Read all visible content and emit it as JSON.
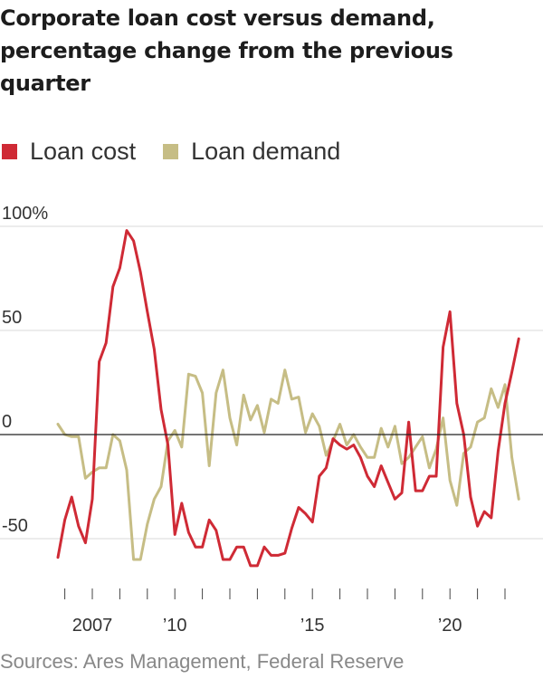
{
  "title": "Corporate loan cost versus demand, percentage change from the previous quarter",
  "source": "Sources: Ares Management, Federal Reserve",
  "colors": {
    "loan_cost": "#cf2a35",
    "loan_demand": "#c6bd85",
    "grid": "#d8d8d8",
    "zero": "#222222"
  },
  "chart_data": {
    "type": "line",
    "title": "Corporate loan cost versus demand, percentage change from the previous quarter",
    "xlabel": "",
    "ylabel": "",
    "x_ticks": [
      {
        "x": 2007,
        "label": "2007"
      },
      {
        "x": 2010,
        "label": "’10"
      },
      {
        "x": 2015,
        "label": "’15"
      },
      {
        "x": 2020,
        "label": "’20"
      }
    ],
    "y_ticks": [
      {
        "y": 100,
        "label": "100%"
      },
      {
        "y": 50,
        "label": "50"
      },
      {
        "y": 0,
        "label": "0"
      },
      {
        "y": -50,
        "label": "-50"
      }
    ],
    "xlim": [
      2005.3,
      2022.9
    ],
    "ylim": [
      -75,
      105
    ],
    "grid": true,
    "legend_position": "top-left",
    "series": [
      {
        "name": "Loan cost",
        "color": "#cf2a35",
        "points": [
          [
            2005.75,
            -59
          ],
          [
            2006.0,
            -41
          ],
          [
            2006.25,
            -30
          ],
          [
            2006.5,
            -44
          ],
          [
            2006.75,
            -52
          ],
          [
            2007.0,
            -31
          ],
          [
            2007.25,
            35
          ],
          [
            2007.5,
            44
          ],
          [
            2007.75,
            71
          ],
          [
            2008.0,
            80
          ],
          [
            2008.25,
            98
          ],
          [
            2008.5,
            93
          ],
          [
            2008.75,
            78
          ],
          [
            2009.0,
            59
          ],
          [
            2009.25,
            41
          ],
          [
            2009.5,
            12
          ],
          [
            2009.75,
            -5
          ],
          [
            2010.0,
            -48
          ],
          [
            2010.25,
            -33
          ],
          [
            2010.5,
            -47
          ],
          [
            2010.75,
            -54
          ],
          [
            2011.0,
            -54
          ],
          [
            2011.25,
            -41
          ],
          [
            2011.5,
            -46
          ],
          [
            2011.75,
            -60
          ],
          [
            2012.0,
            -60
          ],
          [
            2012.25,
            -54
          ],
          [
            2012.5,
            -54
          ],
          [
            2012.75,
            -63
          ],
          [
            2013.0,
            -63
          ],
          [
            2013.25,
            -54
          ],
          [
            2013.5,
            -58
          ],
          [
            2013.75,
            -58
          ],
          [
            2014.0,
            -57
          ],
          [
            2014.25,
            -45
          ],
          [
            2014.5,
            -35
          ],
          [
            2014.75,
            -38
          ],
          [
            2015.0,
            -42
          ],
          [
            2015.25,
            -20
          ],
          [
            2015.5,
            -16
          ],
          [
            2015.75,
            -2
          ],
          [
            2016.0,
            -5
          ],
          [
            2016.25,
            -7
          ],
          [
            2016.5,
            -5
          ],
          [
            2016.75,
            -11
          ],
          [
            2017.0,
            -20
          ],
          [
            2017.25,
            -25
          ],
          [
            2017.5,
            -15
          ],
          [
            2017.75,
            -23
          ],
          [
            2018.0,
            -31
          ],
          [
            2018.25,
            -28
          ],
          [
            2018.5,
            6
          ],
          [
            2018.75,
            -27
          ],
          [
            2019.0,
            -27
          ],
          [
            2019.25,
            -20
          ],
          [
            2019.5,
            -20
          ],
          [
            2019.75,
            42
          ],
          [
            2020.0,
            59
          ],
          [
            2020.25,
            15
          ],
          [
            2020.5,
            0
          ],
          [
            2020.75,
            -30
          ],
          [
            2021.0,
            -44
          ],
          [
            2021.25,
            -37
          ],
          [
            2021.5,
            -40
          ],
          [
            2021.75,
            -8
          ],
          [
            2022.0,
            15
          ],
          [
            2022.25,
            30
          ],
          [
            2022.5,
            46
          ]
        ]
      },
      {
        "name": "Loan demand",
        "color": "#c6bd85",
        "points": [
          [
            2005.75,
            5
          ],
          [
            2006.0,
            0
          ],
          [
            2006.25,
            -1
          ],
          [
            2006.5,
            -1
          ],
          [
            2006.75,
            -21
          ],
          [
            2007.0,
            -18
          ],
          [
            2007.25,
            -16
          ],
          [
            2007.5,
            -16
          ],
          [
            2007.75,
            0
          ],
          [
            2008.0,
            -3
          ],
          [
            2008.25,
            -17
          ],
          [
            2008.5,
            -60
          ],
          [
            2008.75,
            -60
          ],
          [
            2009.0,
            -43
          ],
          [
            2009.25,
            -31
          ],
          [
            2009.5,
            -25
          ],
          [
            2009.75,
            -3
          ],
          [
            2010.0,
            2
          ],
          [
            2010.25,
            -6
          ],
          [
            2010.5,
            29
          ],
          [
            2010.75,
            28
          ],
          [
            2011.0,
            20
          ],
          [
            2011.25,
            -15
          ],
          [
            2011.5,
            20
          ],
          [
            2011.75,
            31
          ],
          [
            2012.0,
            8
          ],
          [
            2012.25,
            -5
          ],
          [
            2012.5,
            19
          ],
          [
            2012.75,
            7
          ],
          [
            2013.0,
            14
          ],
          [
            2013.25,
            1
          ],
          [
            2013.5,
            17
          ],
          [
            2013.75,
            15
          ],
          [
            2014.0,
            31
          ],
          [
            2014.25,
            17
          ],
          [
            2014.5,
            18
          ],
          [
            2014.75,
            1
          ],
          [
            2015.0,
            10
          ],
          [
            2015.25,
            4
          ],
          [
            2015.5,
            -10
          ],
          [
            2015.75,
            -3
          ],
          [
            2016.0,
            5
          ],
          [
            2016.25,
            -5
          ],
          [
            2016.5,
            0
          ],
          [
            2016.75,
            -6
          ],
          [
            2017.0,
            -11
          ],
          [
            2017.25,
            -11
          ],
          [
            2017.5,
            3
          ],
          [
            2017.75,
            -6
          ],
          [
            2018.0,
            4
          ],
          [
            2018.25,
            -14
          ],
          [
            2018.5,
            -11
          ],
          [
            2018.75,
            -6
          ],
          [
            2019.0,
            -1
          ],
          [
            2019.25,
            -16
          ],
          [
            2019.5,
            -7
          ],
          [
            2019.75,
            8
          ],
          [
            2020.0,
            -22
          ],
          [
            2020.25,
            -34
          ],
          [
            2020.5,
            -9
          ],
          [
            2020.75,
            -6
          ],
          [
            2021.0,
            6
          ],
          [
            2021.25,
            8
          ],
          [
            2021.5,
            22
          ],
          [
            2021.75,
            13
          ],
          [
            2022.0,
            24
          ],
          [
            2022.25,
            -11
          ],
          [
            2022.5,
            -31
          ]
        ]
      }
    ]
  }
}
